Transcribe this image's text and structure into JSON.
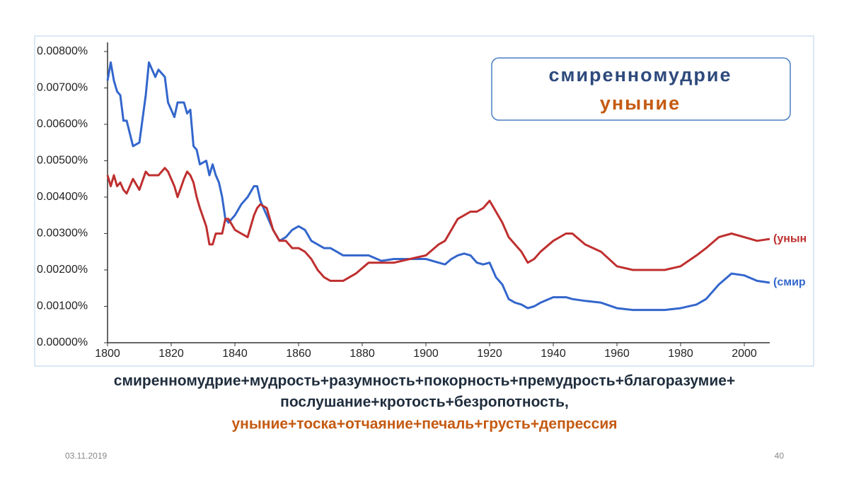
{
  "chart_data": {
    "type": "line",
    "x": [
      1800,
      1801,
      1802,
      1803,
      1804,
      1805,
      1806,
      1808,
      1810,
      1812,
      1813,
      1815,
      1816,
      1818,
      1819,
      1821,
      1822,
      1824,
      1825,
      1826,
      1827,
      1828,
      1829,
      1831,
      1832,
      1833,
      1834,
      1835,
      1836,
      1837,
      1838,
      1840,
      1842,
      1844,
      1846,
      1847,
      1848,
      1850,
      1852,
      1854,
      1856,
      1858,
      1860,
      1862,
      1864,
      1866,
      1868,
      1870,
      1872,
      1874,
      1878,
      1882,
      1886,
      1890,
      1895,
      1900,
      1904,
      1906,
      1908,
      1910,
      1912,
      1914,
      1916,
      1918,
      1920,
      1922,
      1924,
      1926,
      1928,
      1930,
      1932,
      1934,
      1936,
      1940,
      1944,
      1946,
      1950,
      1955,
      1960,
      1965,
      1970,
      1975,
      1980,
      1985,
      1988,
      1992,
      1996,
      2000,
      2004,
      2008
    ],
    "series": [
      {
        "name": "смиренномудрие",
        "end_label": "(смир",
        "color": "#3366cc",
        "legend_color": "#2e4a7d",
        "values": [
          0.0072,
          0.0077,
          0.0072,
          0.0069,
          0.0068,
          0.0061,
          0.0061,
          0.0054,
          0.0055,
          0.0068,
          0.0077,
          0.0073,
          0.0075,
          0.0073,
          0.0066,
          0.0062,
          0.0066,
          0.0066,
          0.0063,
          0.0064,
          0.0054,
          0.0053,
          0.0049,
          0.005,
          0.0046,
          0.0049,
          0.0046,
          0.0044,
          0.004,
          0.0034,
          0.0033,
          0.0035,
          0.0038,
          0.004,
          0.0043,
          0.0043,
          0.0039,
          0.0035,
          0.0031,
          0.0028,
          0.0029,
          0.0031,
          0.0032,
          0.0031,
          0.0028,
          0.0027,
          0.0026,
          0.0026,
          0.0025,
          0.0024,
          0.0024,
          0.0024,
          0.00225,
          0.0023,
          0.0023,
          0.0023,
          0.0022,
          0.00215,
          0.0023,
          0.0024,
          0.00245,
          0.0024,
          0.0022,
          0.00215,
          0.0022,
          0.0018,
          0.0016,
          0.0012,
          0.0011,
          0.00105,
          0.00095,
          0.001,
          0.0011,
          0.00125,
          0.00125,
          0.0012,
          0.00115,
          0.0011,
          0.00095,
          0.0009,
          0.0009,
          0.0009,
          0.00095,
          0.00105,
          0.0012,
          0.0016,
          0.0019,
          0.00185,
          0.0017,
          0.00165
        ]
      },
      {
        "name": "уныние",
        "end_label": "(унын",
        "color": "#bf2f2f",
        "legend_color": "#c55a11",
        "values": [
          0.0046,
          0.0043,
          0.0046,
          0.0043,
          0.0044,
          0.0042,
          0.0041,
          0.0045,
          0.0042,
          0.0047,
          0.0046,
          0.0046,
          0.0046,
          0.0048,
          0.0047,
          0.0043,
          0.004,
          0.0045,
          0.0047,
          0.0046,
          0.0044,
          0.004,
          0.0037,
          0.0032,
          0.0027,
          0.0027,
          0.003,
          0.003,
          0.003,
          0.0034,
          0.0034,
          0.0031,
          0.003,
          0.0029,
          0.0035,
          0.0037,
          0.0038,
          0.0037,
          0.0031,
          0.0028,
          0.0028,
          0.0026,
          0.0026,
          0.0025,
          0.0023,
          0.002,
          0.0018,
          0.0017,
          0.0017,
          0.0017,
          0.0019,
          0.0022,
          0.0022,
          0.0022,
          0.0023,
          0.0024,
          0.0027,
          0.0028,
          0.0031,
          0.0034,
          0.0035,
          0.0036,
          0.0036,
          0.0037,
          0.0039,
          0.0036,
          0.0033,
          0.0029,
          0.0027,
          0.0025,
          0.0022,
          0.0023,
          0.0025,
          0.0028,
          0.003,
          0.003,
          0.0027,
          0.0025,
          0.0021,
          0.002,
          0.002,
          0.002,
          0.0021,
          0.0024,
          0.0026,
          0.0029,
          0.003,
          0.0029,
          0.0028,
          0.00285
        ]
      }
    ],
    "xlim": [
      1800,
      2008
    ],
    "xticks": [
      1800,
      1820,
      1840,
      1860,
      1880,
      1900,
      1920,
      1940,
      1960,
      1980,
      2000
    ],
    "ylim": [
      0,
      0.00825
    ],
    "yticks": [
      {
        "value": 0,
        "label": "0.00000%"
      },
      {
        "value": 0.001,
        "label": "0.00100%"
      },
      {
        "value": 0.002,
        "label": "0.00200%"
      },
      {
        "value": 0.003,
        "label": "0.00300%"
      },
      {
        "value": 0.004,
        "label": "0.00400%"
      },
      {
        "value": 0.005,
        "label": "0.00500%"
      },
      {
        "value": 0.006,
        "label": "0.00600%"
      },
      {
        "value": 0.007,
        "label": "0.00700%"
      },
      {
        "value": 0.008,
        "label": "0.00800%"
      }
    ],
    "grid": false
  },
  "caption": [
    "смиренномудрие+мудрость+разумность+покорность+премудрость+благоразумие+",
    "послушание+кротость+безропотность,",
    "уныние+тоска+отчаяние+печаль+грусть+депрессия"
  ],
  "footer": {
    "date": "03.11.2019",
    "page": "40"
  }
}
